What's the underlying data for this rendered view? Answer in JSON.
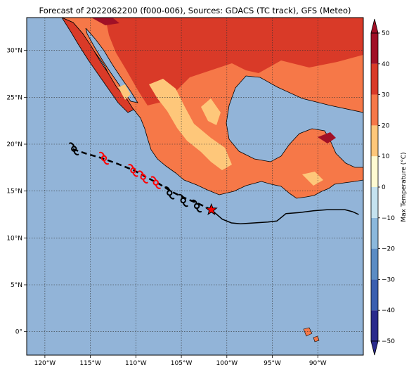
{
  "title": "Forecast of 2022062200 (f000-006), Sources: GDACS (TC track), GFS (Meteo)",
  "map": {
    "lon_range": [
      -122,
      -85
    ],
    "lat_range": [
      -2.5,
      33.5
    ],
    "lon_ticks": [
      {
        "v": -120,
        "label": "120°W"
      },
      {
        "v": -115,
        "label": "115°W"
      },
      {
        "v": -110,
        "label": "110°W"
      },
      {
        "v": -105,
        "label": "105°W"
      },
      {
        "v": -100,
        "label": "100°W"
      },
      {
        "v": -95,
        "label": "95°W"
      },
      {
        "v": -90,
        "label": "90°W"
      }
    ],
    "lat_ticks": [
      {
        "v": 0,
        "label": "0°"
      },
      {
        "v": 5,
        "label": "5°N"
      },
      {
        "v": 10,
        "label": "10°N"
      },
      {
        "v": 15,
        "label": "15°N"
      },
      {
        "v": 20,
        "label": "20°N"
      },
      {
        "v": 25,
        "label": "25°N"
      },
      {
        "v": 30,
        "label": "30°N"
      }
    ],
    "ocean_color": "#92b4d8",
    "gridlines": true
  },
  "colorbar": {
    "label": "Max Temperature (°C)",
    "ticks": [
      {
        "v": -50,
        "label": "−50"
      },
      {
        "v": -40,
        "label": "−40"
      },
      {
        "v": -30,
        "label": "−30"
      },
      {
        "v": -20,
        "label": "−20"
      },
      {
        "v": -10,
        "label": "−10"
      },
      {
        "v": 0,
        "label": "0"
      },
      {
        "v": 10,
        "label": "10"
      },
      {
        "v": 20,
        "label": "20"
      },
      {
        "v": 30,
        "label": "30"
      },
      {
        "v": 40,
        "label": "40"
      },
      {
        "v": 50,
        "label": "50"
      }
    ],
    "range": [
      -50,
      50
    ],
    "colors": [
      "#2a2a8c",
      "#3a5fb0",
      "#5b8cc4",
      "#8bb8dc",
      "#c5e2ef",
      "#fffbd2",
      "#fec77a",
      "#f67848",
      "#d93a28",
      "#a11026"
    ]
  },
  "temperature_zones": {
    "warm_20_30": "#f67848",
    "hot_30_40": "#d93a28",
    "very_hot_40_50": "#a11026",
    "mild_10_20": "#fec77a"
  },
  "track": {
    "past_line_color": "#000000",
    "past": [
      [
        -85.5,
        12.5
      ],
      [
        -86.2,
        12.8
      ],
      [
        -87.0,
        13.0
      ],
      [
        -88.0,
        13.0
      ],
      [
        -89.0,
        13.0
      ],
      [
        -90.5,
        12.9
      ],
      [
        -92.0,
        12.7
      ],
      [
        -93.5,
        12.6
      ],
      [
        -94.5,
        11.8
      ],
      [
        -95.5,
        11.7
      ],
      [
        -97.0,
        11.6
      ],
      [
        -98.5,
        11.5
      ],
      [
        -99.5,
        11.6
      ],
      [
        -100.5,
        12.0
      ],
      [
        -101.7,
        13.0
      ]
    ],
    "current": {
      "lon": -101.7,
      "lat": 13.0,
      "symbol": "star-icon",
      "color": "#ff0000"
    },
    "forecast_line_color": "#000000",
    "forecast": [
      [
        -101.7,
        13.0
      ],
      [
        -103.0,
        13.6
      ],
      [
        -104.5,
        14.2
      ],
      [
        -106.0,
        14.9
      ],
      [
        -107.5,
        15.8
      ],
      [
        -108.9,
        16.5
      ],
      [
        -110.2,
        17.2
      ],
      [
        -112.0,
        17.9
      ],
      [
        -113.7,
        18.5
      ],
      [
        -115.5,
        19.0
      ],
      [
        -117.0,
        19.5
      ]
    ],
    "markers": [
      {
        "lon": -103.3,
        "lat": 13.4,
        "color": "#000000"
      },
      {
        "lon": -104.8,
        "lat": 14.0,
        "color": "#000000"
      },
      {
        "lon": -106.3,
        "lat": 14.8,
        "color": "#000000"
      },
      {
        "lon": -107.8,
        "lat": 15.9,
        "color": "#ff0000"
      },
      {
        "lon": -109.2,
        "lat": 16.5,
        "color": "#ff0000"
      },
      {
        "lon": -110.3,
        "lat": 17.2,
        "color": "#ff0000"
      },
      {
        "lon": -113.5,
        "lat": 18.5,
        "color": "#ff0000"
      },
      {
        "lon": -116.8,
        "lat": 19.5,
        "color": "#000000"
      }
    ]
  }
}
